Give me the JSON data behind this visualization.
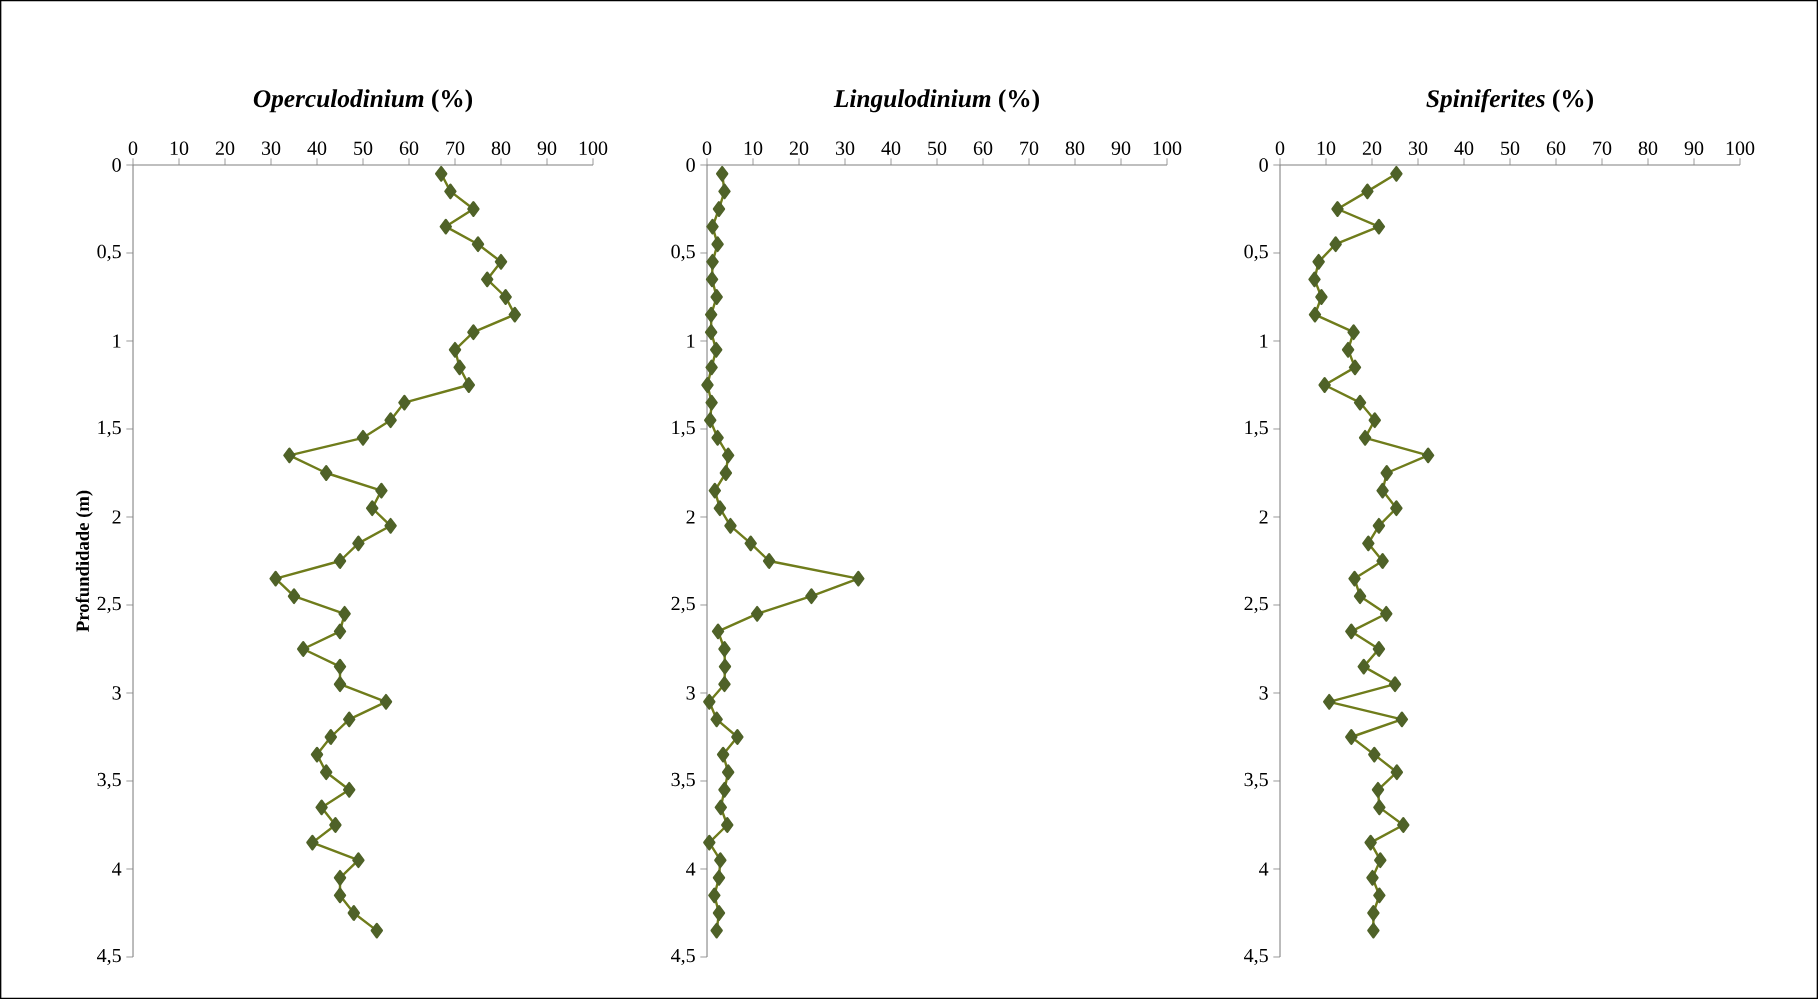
{
  "chart_data": [
    {
      "type": "line",
      "title": "*Operculodinium* (%)",
      "ylabel": "Profundidade (m)",
      "marker": "diamond",
      "line_style": "solid",
      "xlim": [
        0,
        100
      ],
      "xticks": [
        0,
        10,
        20,
        30,
        40,
        50,
        60,
        70,
        80,
        90,
        100
      ],
      "ylim": [
        4.5,
        0
      ],
      "yticks": [
        0,
        {
          "value": 0.5,
          "label": "0,5"
        },
        1,
        {
          "value": 1.5,
          "label": "1,5"
        },
        2,
        {
          "value": 2.5,
          "label": "2,5"
        },
        3,
        {
          "value": 3.5,
          "label": "3,5"
        },
        4,
        {
          "value": 4.5,
          "label": "4,5"
        }
      ],
      "series": [
        {
          "color": "#4f6228",
          "x": [
            67,
            69,
            74,
            68,
            75,
            80,
            77,
            81,
            83,
            74,
            70,
            71,
            73,
            59,
            56,
            50,
            34,
            42,
            54,
            52,
            56,
            49,
            45,
            31,
            35,
            46,
            45,
            37,
            45,
            45,
            55,
            47,
            43,
            40,
            42,
            47,
            41,
            44,
            39,
            49,
            45,
            45,
            48,
            53
          ],
          "values": [
            0.05,
            0.15,
            0.25,
            0.35,
            0.45,
            0.55,
            0.65,
            0.75,
            0.85,
            0.95,
            1.05,
            1.15,
            1.25,
            1.35,
            1.45,
            1.55,
            1.65,
            1.75,
            1.85,
            1.95,
            2.05,
            2.15,
            2.25,
            2.35,
            2.45,
            2.55,
            2.65,
            2.75,
            2.85,
            2.95,
            3.05,
            3.15,
            3.25,
            3.35,
            3.45,
            3.55,
            3.65,
            3.75,
            3.85,
            3.95,
            4.05,
            4.15,
            4.25,
            4.35
          ]
        }
      ]
    },
    {
      "type": "line",
      "title": "*Lingulodinium* (%)",
      "marker": "diamond",
      "line_style": "solid",
      "xlim": [
        0,
        100
      ],
      "xticks": [
        0,
        10,
        20,
        30,
        40,
        50,
        60,
        70,
        80,
        90,
        100
      ],
      "ylim": [
        4.5,
        0
      ],
      "yticks": [
        0,
        {
          "value": 0.5,
          "label": "0,5"
        },
        1,
        {
          "value": 1.5,
          "label": "1,5"
        },
        2,
        {
          "value": 2.5,
          "label": "2,5"
        },
        3,
        {
          "value": 3.5,
          "label": "3,5"
        },
        4,
        {
          "value": 4.5,
          "label": "4,5"
        }
      ],
      "series": [
        {
          "color": "#4f6228",
          "x": [
            3.3,
            3.8,
            2.6,
            1.2,
            2.3,
            1.2,
            1.1,
            2.1,
            0.9,
            0.9,
            2,
            1,
            0.1,
            1,
            0.7,
            2.3,
            4.6,
            4.1,
            1.7,
            2.8,
            5.1,
            9.5,
            13.5,
            32.9,
            22.7,
            10.9,
            2.4,
            3.8,
            3.9,
            3.8,
            0.5,
            2.1,
            6.6,
            3.5,
            4.6,
            3.8,
            3,
            4.4,
            0.5,
            2.9,
            2.6,
            1.6,
            2.6,
            2.1
          ],
          "values": [
            0.05,
            0.15,
            0.25,
            0.35,
            0.45,
            0.55,
            0.65,
            0.75,
            0.85,
            0.95,
            1.05,
            1.15,
            1.25,
            1.35,
            1.45,
            1.55,
            1.65,
            1.75,
            1.85,
            1.95,
            2.05,
            2.15,
            2.25,
            2.35,
            2.45,
            2.55,
            2.65,
            2.75,
            2.85,
            2.95,
            3.05,
            3.15,
            3.25,
            3.35,
            3.45,
            3.55,
            3.65,
            3.75,
            3.85,
            3.95,
            4.05,
            4.15,
            4.25,
            4.35
          ]
        }
      ]
    },
    {
      "type": "line",
      "title": "*Spiniferites* (%)",
      "marker": "diamond",
      "line_style": "solid",
      "xlim": [
        0,
        100
      ],
      "xticks": [
        0,
        10,
        20,
        30,
        40,
        50,
        60,
        70,
        80,
        90,
        100
      ],
      "ylim": [
        4.5,
        0
      ],
      "yticks": [
        0,
        {
          "value": 0.5,
          "label": "0,5"
        },
        1,
        {
          "value": 1.5,
          "label": "1,5"
        },
        2,
        {
          "value": 2.5,
          "label": "2,5"
        },
        3,
        {
          "value": 3.5,
          "label": "3,5"
        },
        4,
        {
          "value": 4.5,
          "label": "4,5"
        }
      ],
      "series": [
        {
          "color": "#4f6228",
          "x": [
            25.3,
            19,
            12.5,
            21.5,
            12.1,
            8.4,
            7.5,
            9,
            7.6,
            16,
            14.8,
            16.3,
            9.7,
            17.4,
            20.6,
            18.5,
            32.2,
            23.2,
            22.3,
            25.3,
            21.5,
            19.2,
            22.3,
            16.2,
            17.4,
            23.1,
            15.5,
            21.5,
            18.2,
            25,
            10.7,
            26.5,
            15.5,
            20.5,
            25.4,
            21.3,
            21.6,
            26.8,
            19.7,
            21.8,
            20.1,
            21.6,
            20.3,
            20.3
          ],
          "values": [
            0.05,
            0.15,
            0.25,
            0.35,
            0.45,
            0.55,
            0.65,
            0.75,
            0.85,
            0.95,
            1.05,
            1.15,
            1.25,
            1.35,
            1.45,
            1.55,
            1.65,
            1.75,
            1.85,
            1.95,
            2.05,
            2.15,
            2.25,
            2.35,
            2.45,
            2.55,
            2.65,
            2.75,
            2.85,
            2.95,
            3.05,
            3.15,
            3.25,
            3.35,
            3.45,
            3.55,
            3.65,
            3.75,
            3.85,
            3.95,
            4.05,
            4.15,
            4.25,
            4.35
          ]
        }
      ]
    }
  ]
}
